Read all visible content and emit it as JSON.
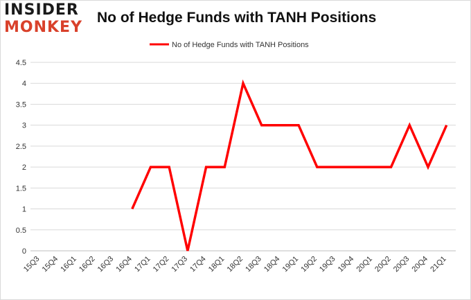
{
  "logo": {
    "line1": "INSIDER",
    "line2": "MONKEY",
    "colors": {
      "dark": "#1a1a1a",
      "accent": "#d9412b"
    }
  },
  "chart_data": {
    "type": "line",
    "title": "No of Hedge Funds with TANH Positions",
    "xlabel": "",
    "ylabel": "",
    "categories": [
      "15Q3",
      "15Q4",
      "16Q1",
      "16Q2",
      "16Q3",
      "16Q4",
      "17Q1",
      "17Q2",
      "17Q3",
      "17Q4",
      "18Q1",
      "18Q2",
      "18Q3",
      "18Q4",
      "19Q1",
      "19Q2",
      "19Q3",
      "19Q4",
      "20Q1",
      "20Q2",
      "20Q3",
      "20Q4",
      "21Q1"
    ],
    "series": [
      {
        "name": "No of Hedge Funds with TANH Positions",
        "color": "#ff0000",
        "values": [
          null,
          null,
          null,
          null,
          null,
          1,
          2,
          2,
          0,
          2,
          2,
          4,
          3,
          3,
          3,
          2,
          2,
          2,
          2,
          2,
          3,
          2,
          3
        ]
      }
    ],
    "ylim": [
      0,
      4.5
    ],
    "yticks": [
      "0",
      "0.5",
      "1",
      "1.5",
      "2",
      "2.5",
      "3",
      "3.5",
      "4",
      "4.5"
    ],
    "grid": true,
    "legend_position": "top-center"
  }
}
